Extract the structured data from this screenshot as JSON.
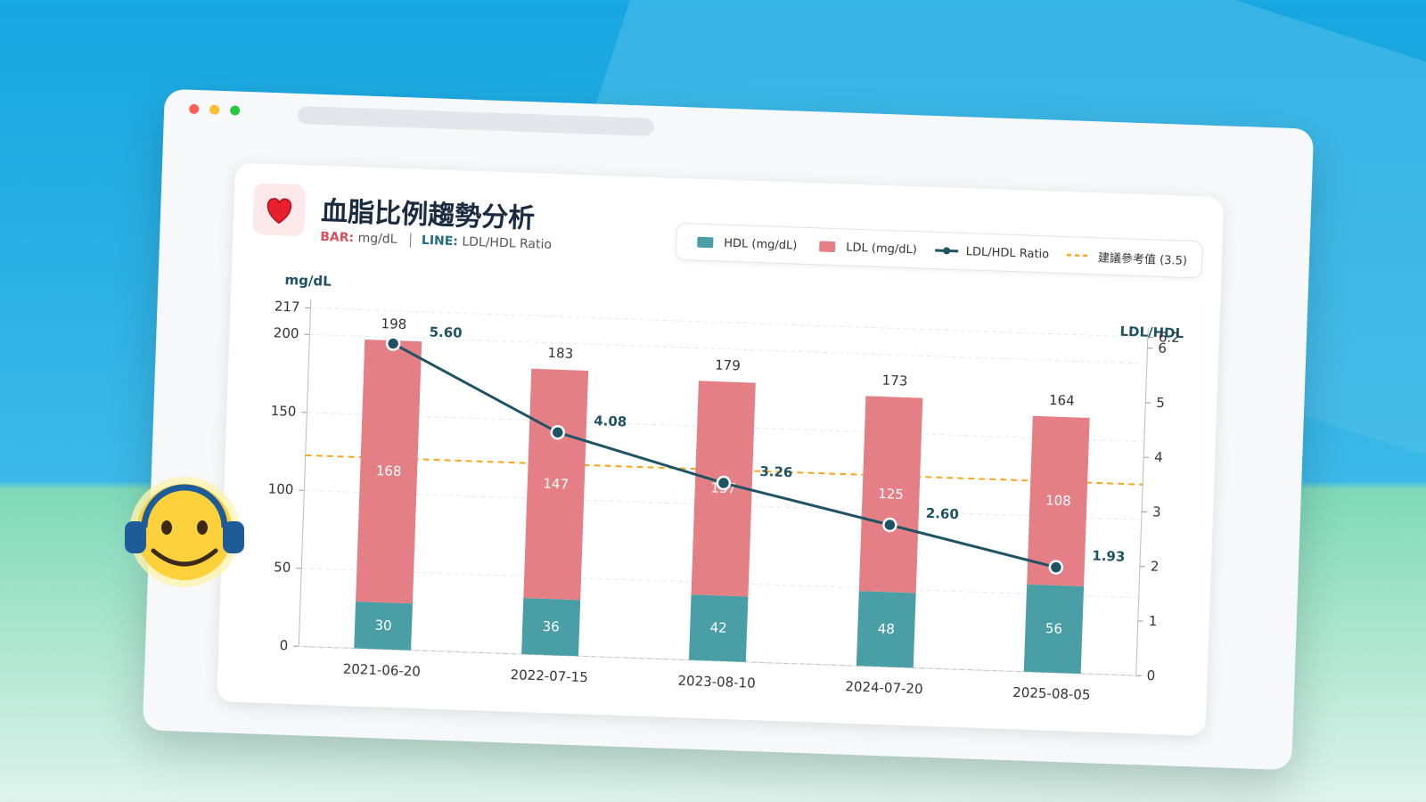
{
  "chart_data": {
    "type": "bar",
    "title": "血脂比例趨勢分析",
    "subtitle": {
      "bar_label": "BAR:",
      "bar_unit": "mg/dL",
      "line_label": "LINE:",
      "line_unit": "LDL/HDL Ratio"
    },
    "y_label": "mg/dL",
    "y2_label": "LDL/HDL",
    "categories": [
      "2021-06-20",
      "2022-07-15",
      "2023-08-10",
      "2024-07-20",
      "2025-08-05"
    ],
    "series": [
      {
        "name": "HDL (mg/dL)",
        "color": "#4a9ea6",
        "values": [
          30,
          36,
          42,
          48,
          56
        ]
      },
      {
        "name": "LDL (mg/dL)",
        "color": "#e57f86",
        "values": [
          168,
          147,
          137,
          125,
          108
        ]
      },
      {
        "name": "LDL/HDL Ratio",
        "color": "#1e5365",
        "axis": "y2",
        "values": [
          5.6,
          4.08,
          3.26,
          2.6,
          1.93
        ],
        "value_labels": [
          "5.60",
          "4.08",
          "3.26",
          "2.60",
          "1.93"
        ]
      }
    ],
    "totals": [
      198,
      183,
      179,
      173,
      164
    ],
    "reference": {
      "name": "建議參考值 (3.5)",
      "value": 3.5,
      "color": "#f5a623"
    },
    "ylim": [
      0,
      217
    ],
    "yticks": [
      0,
      50,
      100,
      150,
      200,
      217
    ],
    "y2lim": [
      0,
      6.2
    ],
    "y2ticks": [
      0,
      1,
      2,
      3,
      4,
      5,
      6,
      6.2
    ],
    "grid": true
  }
}
